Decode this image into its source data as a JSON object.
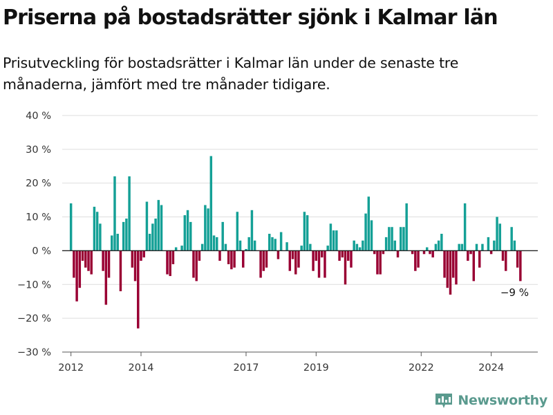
{
  "header": {
    "title": "Priserna på bostadsrätter sjönk i Kalmar län",
    "subtitle": "Prisutveckling för bostadsrätter i Kalmar län under de senaste tre månaderna, jämfört med tre månader tidigare."
  },
  "brand": {
    "name": "Newsworthy",
    "icon": "bar-chart-logo-icon",
    "color": "#5a9a8e"
  },
  "colors": {
    "positive": "#14a096",
    "negative": "#990033",
    "grid": "#dddddd",
    "axis": "#555555"
  },
  "chart_data": {
    "type": "bar",
    "yunit": "%",
    "ylim": [
      -30,
      40
    ],
    "yticks": [
      40,
      30,
      20,
      10,
      0,
      -10,
      -20,
      -30
    ],
    "ytick_labels": [
      "40 %",
      "30 %",
      "20 %",
      "10 %",
      "0 %",
      "−10 %",
      "−20 %",
      "−30 %"
    ],
    "xlim": [
      2011.75,
      2025.33
    ],
    "xticks": [
      2012,
      2014,
      2017,
      2019,
      2022,
      2024
    ],
    "xtick_labels": [
      "2012",
      "2014",
      "2017",
      "2019",
      "2022",
      "2024"
    ],
    "grid": true,
    "x_start": 2012.0,
    "x_step": 0.0833333,
    "values": [
      14,
      -8,
      -15,
      -11,
      -3,
      -5,
      -6,
      -7,
      13,
      11.5,
      8,
      -6,
      -16,
      -8,
      4.5,
      22,
      5,
      -12,
      8.5,
      9.5,
      22,
      -5,
      -9,
      -23,
      -3,
      -2,
      14.5,
      5,
      8,
      9.5,
      15,
      13.5,
      0,
      -7,
      -7.5,
      -4,
      1,
      0,
      1.5,
      10.5,
      12,
      8.5,
      -8,
      -9,
      -3,
      2,
      13.5,
      12.5,
      28,
      4.5,
      4,
      -3,
      8.5,
      2,
      -4,
      -5.5,
      -5,
      11.5,
      3,
      -5,
      0.5,
      4,
      12,
      3,
      0,
      -8,
      -6,
      -5,
      5,
      4,
      3.5,
      -2.5,
      5.5,
      0,
      2.5,
      -6,
      -2.5,
      -7,
      -5,
      1.5,
      11.5,
      10.5,
      2,
      -6,
      -3,
      -8,
      -2,
      -8,
      1.5,
      8,
      6,
      6,
      -3,
      -2,
      -10,
      -3,
      -5,
      3,
      2,
      1,
      3,
      11,
      16,
      9,
      -1,
      -7,
      -7,
      -1,
      4,
      7,
      7,
      3,
      -2,
      7,
      7,
      14,
      0,
      -1,
      -6,
      -5,
      0,
      -1,
      1,
      -1,
      -2,
      2,
      3,
      5,
      -8,
      -11,
      -13,
      -8,
      -10,
      2,
      2,
      14,
      -3,
      -1,
      -9,
      2,
      -5,
      2,
      0,
      4,
      -1,
      3,
      10,
      8,
      -3,
      -6,
      0,
      7,
      3,
      -5,
      -9
    ],
    "annotations": [
      {
        "text": "−9 %"
      }
    ]
  }
}
